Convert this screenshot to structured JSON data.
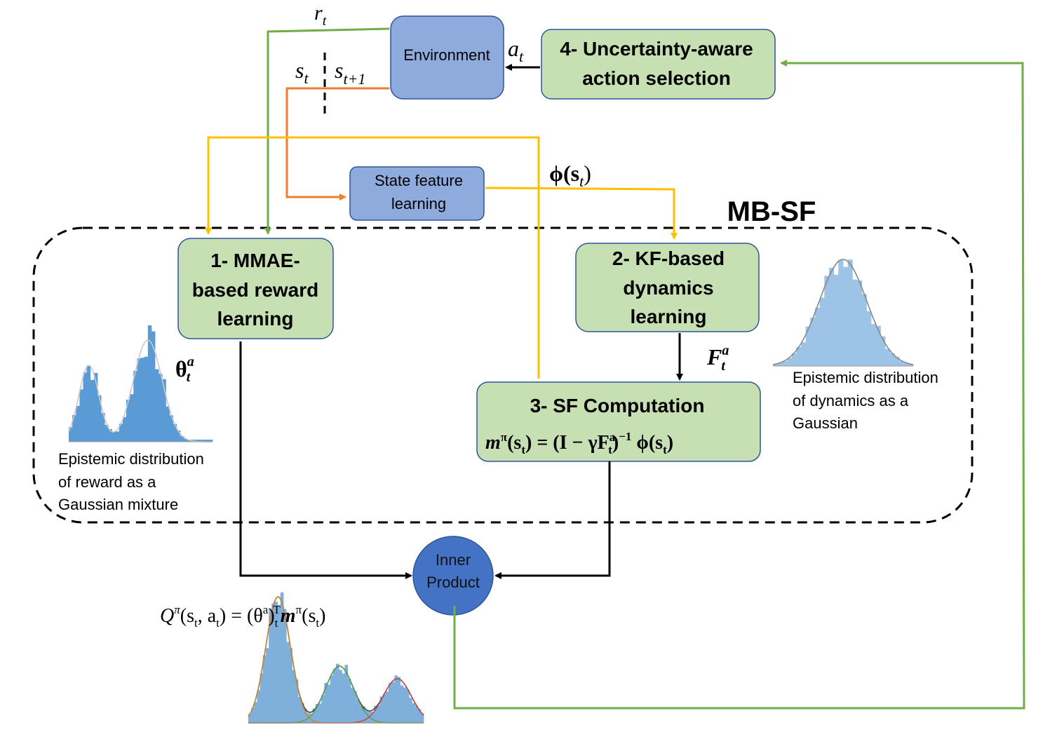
{
  "title": "MB-SF",
  "colors": {
    "green_fill": "#c6e0b4",
    "green_stroke": "#2f5597",
    "blue_fill": "#8faadc",
    "blue_dark": "#4472c4",
    "orange": "#ed7d31",
    "yellow": "#ffc000",
    "green_line": "#70ad47",
    "hist_blue": "#5b9bd5",
    "hist_light": "#9dc3e6"
  },
  "nodes": {
    "environment": "Environment",
    "action_selection": [
      "4- Uncertainty-aware",
      "action selection"
    ],
    "state_feature": [
      "State feature",
      "learning"
    ],
    "reward_learning": [
      "1- MMAE-",
      "based reward",
      "learning"
    ],
    "dynamics_learning": [
      "2- KF-based",
      "dynamics",
      "learning"
    ],
    "sf_computation": "3- SF Computation",
    "inner_product": [
      "Inner",
      "Product"
    ]
  },
  "labels": {
    "r_t": "r",
    "r_t_sub": "t",
    "a_t": "a",
    "a_t_sub": "t",
    "s_t": "s",
    "s_t_sub": "t",
    "s_t1": "s",
    "s_t1_sub": "t+1",
    "phi": "ϕ(s",
    "phi_sub": "t",
    "phi_close": ")",
    "theta": "θ",
    "theta_sup": "a",
    "theta_sub": "t",
    "F": "F",
    "F_sup": "a",
    "F_sub": "t",
    "sf_formula": "m",
    "sf_formula_sup": "π",
    "sf_formula_mid": "(s",
    "sf_formula_sub": "t",
    "sf_formula_rest": ") = (I − γF",
    "sf_formula_sup2": "a",
    "sf_formula_sub2": "t",
    "sf_formula_rest2": ")",
    "sf_formula_sup3": "−1",
    "sf_formula_end": " ϕ(s",
    "sf_formula_sub3": "t",
    "sf_formula_close": ")",
    "q_formula": "Q",
    "q_formula_sup": "π",
    "q_formula_mid": "(s",
    "q_formula_sub": "t",
    "q_formula_rest": ", a",
    "q_formula_sub2": "t",
    "q_formula_rest2": ") = (θ",
    "q_formula_sup2": "a",
    "q_formula_rest3": ")",
    "q_formula_sub3": "t",
    "q_formula_sup3": "T",
    "q_formula_rest4": "m",
    "q_formula_sup4": "π",
    "q_formula_rest5": "(s",
    "q_formula_sub4": "t",
    "q_formula_close": ")"
  },
  "captions": {
    "reward_dist": [
      "Epistemic distribution",
      "of reward as a",
      "Gaussian mixture"
    ],
    "dynamics_dist": [
      "Epistemic distribution",
      "of dynamics as a",
      "Gaussian"
    ]
  }
}
